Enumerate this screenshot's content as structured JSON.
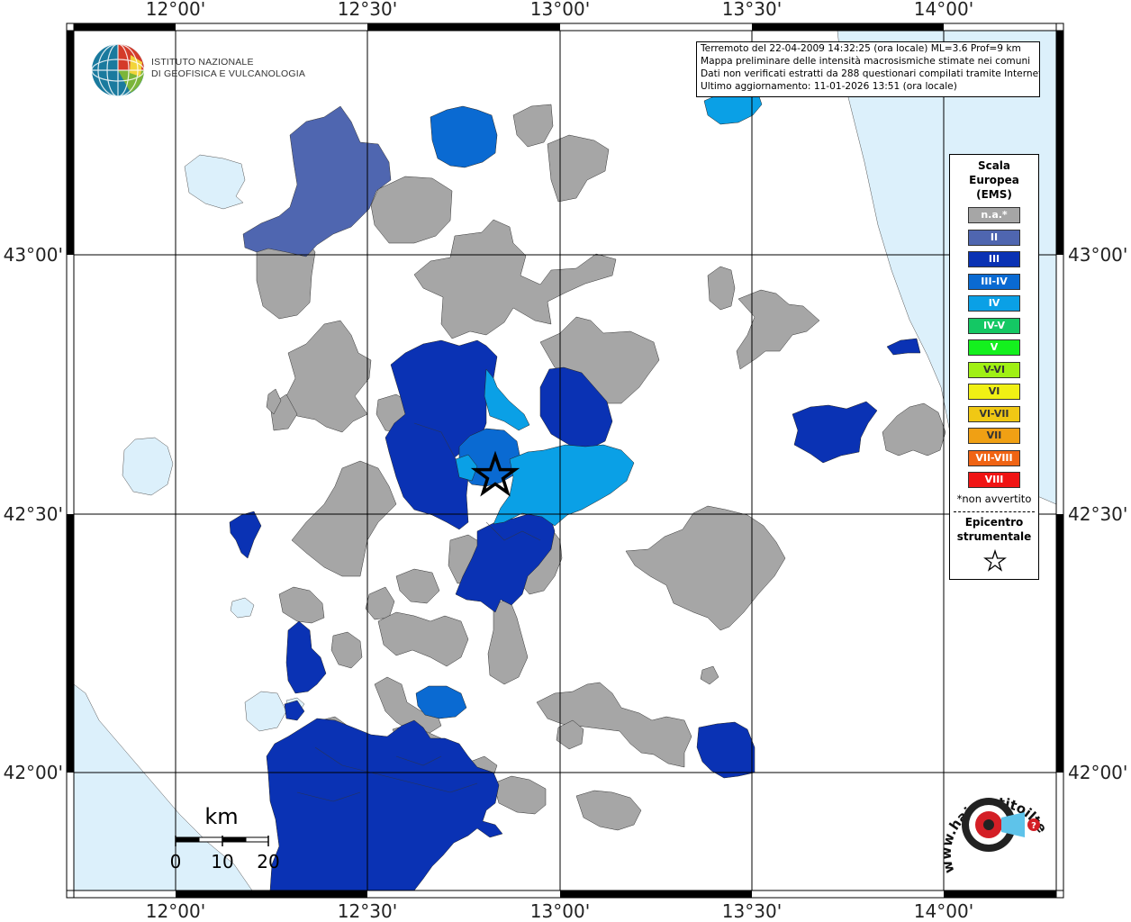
{
  "map": {
    "top_axis_labels": [
      "12°00'",
      "12°30'",
      "13°00'",
      "13°30'",
      "14°00'"
    ],
    "bottom_axis_labels": [
      "12°00'",
      "12°30'",
      "13°00'",
      "13°30'",
      "14°00'"
    ],
    "left_axis_labels": [
      "43°00'",
      "42°30'",
      "42°00'"
    ],
    "right_axis_labels": [
      "43°00'",
      "42°30'",
      "42°00'"
    ],
    "colors": {
      "sea": "#dcf0fb",
      "land": "#ffffff",
      "no_data": "#a6a6a6",
      "II": "#4f66b0",
      "III": "#0a32b4",
      "III-IV": "#0a6ad2",
      "IV": "#0aa0e6"
    },
    "epicenter_icon": "star-icon"
  },
  "info": {
    "line1": "Terremoto del 22-04-2009 14:32:25 (ora locale) ML=3.6 Prof=9 km",
    "line2": "Mappa preliminare delle intensità macrosismiche stimate nei comuni",
    "line3": "Dati non verificati estratti da 288 questionari compilati tramite Internet.",
    "line4": "Ultimo aggiornamento: 11-01-2026 13:51 (ora locale)"
  },
  "institute": {
    "line1": "ISTITUTO NAZIONALE",
    "line2": "DI GEOFISICA E VULCANOLOGIA",
    "icon": "ingv-globe-icon"
  },
  "legend": {
    "title_line1": "Scala",
    "title_line2": "Europea",
    "title_line3": "(EMS)",
    "items": [
      {
        "label": "n.a.*",
        "color": "#a6a6a6"
      },
      {
        "label": "II",
        "color": "#4f66b0"
      },
      {
        "label": "III",
        "color": "#0a32b4"
      },
      {
        "label": "III-IV",
        "color": "#0a6ad2"
      },
      {
        "label": "IV",
        "color": "#0aa0e6"
      },
      {
        "label": "IV-V",
        "color": "#14c864"
      },
      {
        "label": "V",
        "color": "#14f01e"
      },
      {
        "label": "V-VI",
        "color": "#a0f014"
      },
      {
        "label": "VI",
        "color": "#f0f014"
      },
      {
        "label": "VI-VII",
        "color": "#f0c814"
      },
      {
        "label": "VII",
        "color": "#f0a014"
      },
      {
        "label": "VII-VIII",
        "color": "#f06414"
      },
      {
        "label": "VIII",
        "color": "#f01414"
      }
    ],
    "note": "*non avvertito",
    "epicenter_line1": "Epicentro",
    "epicenter_line2": "strumentale",
    "epicenter_icon": "star-icon"
  },
  "scalebar": {
    "unit": "km",
    "labels": [
      "0",
      "10",
      "20"
    ]
  },
  "haisentito": {
    "text": "www.haisentitoilterremoto.it",
    "icon": "haisentito-logo-icon"
  }
}
